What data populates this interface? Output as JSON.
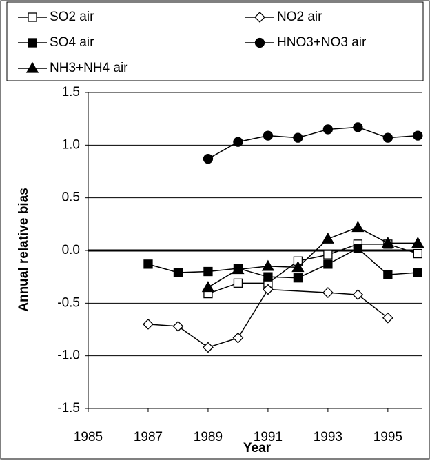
{
  "chart_data": {
    "type": "line",
    "x_label": "Year",
    "y_label": "Annual relative bias",
    "xlim": [
      1985,
      1996.13
    ],
    "xticks": [
      1985,
      1987,
      1989,
      1991,
      1993,
      1995
    ],
    "ylim": [
      -1.5,
      1.5
    ],
    "yticks": [
      -1.5,
      {
        "value": -1.0,
        "label": "-1.0"
      },
      -0.5,
      {
        "value": 0,
        "label": "0.0"
      },
      0.5,
      {
        "value": 1.0,
        "label": "1.0"
      },
      1.5
    ],
    "grid": true,
    "zero_line": true,
    "series": [
      {
        "name": "SO2 air",
        "marker": "square-open",
        "color": "#000000",
        "x": [
          1989,
          1990,
          1991,
          1992,
          1993,
          1994,
          1995,
          1996
        ],
        "values": [
          -0.41,
          -0.31,
          -0.31,
          -0.1,
          -0.04,
          0.06,
          0.06,
          -0.03
        ]
      },
      {
        "name": "NO2 air",
        "marker": "diamond-open",
        "color": "#000000",
        "x": [
          1987,
          1988,
          1989,
          1990,
          1991,
          1993,
          1994,
          1995
        ],
        "values": [
          -0.7,
          -0.72,
          -0.92,
          -0.83,
          -0.37,
          -0.4,
          -0.42,
          -0.64
        ]
      },
      {
        "name": "SO4 air",
        "marker": "square",
        "color": "#000000",
        "x": [
          1987,
          1988,
          1989,
          1990,
          1991,
          1992,
          1993,
          1994,
          1995,
          1996
        ],
        "values": [
          -0.13,
          -0.21,
          -0.2,
          -0.17,
          -0.25,
          -0.26,
          -0.13,
          0.02,
          -0.23,
          -0.21
        ]
      },
      {
        "name": "HNO3+NO3 air",
        "marker": "circle",
        "color": "#000000",
        "x": [
          1989,
          1990,
          1991,
          1992,
          1993,
          1994,
          1995,
          1996
        ],
        "values": [
          0.87,
          1.03,
          1.09,
          1.07,
          1.15,
          1.17,
          1.07,
          1.09
        ]
      },
      {
        "name": "NH3+NH4 air",
        "marker": "triangle",
        "color": "#000000",
        "x": [
          1989,
          1990,
          1991,
          1992,
          1993,
          1994,
          1995,
          1996
        ],
        "values": [
          -0.35,
          -0.18,
          -0.15,
          -0.16,
          0.11,
          0.22,
          0.07,
          0.07
        ]
      }
    ]
  }
}
